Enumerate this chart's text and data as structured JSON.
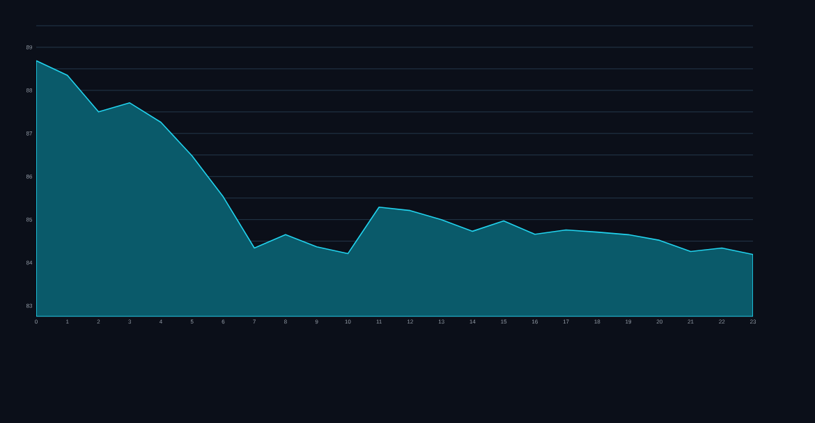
{
  "chart_data": {
    "type": "area",
    "x": [
      0,
      1,
      2,
      3,
      4,
      5,
      6,
      7,
      8,
      9,
      10,
      11,
      12,
      13,
      14,
      15,
      16,
      17,
      18,
      19,
      20,
      21,
      22,
      23
    ],
    "values": [
      88.69,
      88.35,
      87.5,
      87.71,
      87.26,
      86.48,
      85.53,
      84.34,
      84.65,
      84.37,
      84.21,
      85.29,
      85.21,
      85.0,
      84.73,
      84.97,
      84.66,
      84.76,
      84.71,
      84.65,
      84.52,
      84.26,
      84.34,
      84.19
    ],
    "color": "#22d3ee",
    "xlim": [
      0,
      23
    ],
    "xticks": [
      0,
      1,
      2,
      3,
      4,
      5,
      6,
      7,
      8,
      9,
      10,
      11,
      12,
      13,
      14,
      15,
      16,
      17,
      18,
      19,
      20,
      21,
      22,
      23
    ],
    "ylim": [
      82.75,
      89.5
    ],
    "yticks": [
      83,
      {
        "value": 83.5,
        "label": null
      },
      84,
      {
        "value": 84.5,
        "label": null
      },
      85,
      {
        "value": 85.5,
        "label": null
      },
      86,
      {
        "value": 86.5,
        "label": null
      },
      87,
      {
        "value": 87.5,
        "label": null
      },
      88,
      {
        "value": 88.5,
        "label": null
      },
      89,
      {
        "value": 89.5,
        "label": null
      }
    ],
    "grid": "y",
    "line_style": "solid"
  }
}
